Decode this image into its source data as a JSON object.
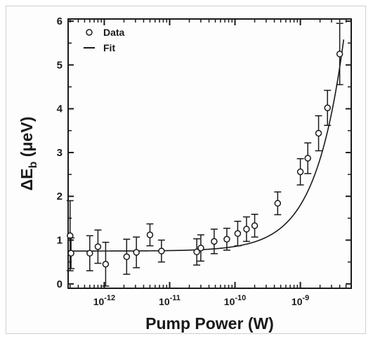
{
  "chart_data": {
    "type": "scatter",
    "xlabel": "Pump Power (W)",
    "ylabel_symbol": "ΔE",
    "ylabel_subscript": "b",
    "ylabel_unit": "(μeV)",
    "x_scale": "log",
    "xlim": [
      2.8e-13,
      6e-09
    ],
    "ylim": [
      -0.1,
      6.05
    ],
    "x_ticks": [
      {
        "value": 1e-12,
        "base": "10",
        "exp": "-12"
      },
      {
        "value": 1e-11,
        "base": "10",
        "exp": "-11"
      },
      {
        "value": 1e-10,
        "base": "10",
        "exp": "-10"
      },
      {
        "value": 1e-09,
        "base": "10",
        "exp": "-9"
      }
    ],
    "y_ticks": [
      "0",
      "1",
      "2",
      "3",
      "4",
      "5",
      "6"
    ],
    "grid": false,
    "legend": {
      "position": "top-left",
      "entries": [
        "Data",
        "Fit"
      ]
    },
    "series": [
      {
        "name": "Data",
        "marker": "open-circle",
        "x": [
          3e-13,
          3.1e-13,
          6e-13,
          8e-13,
          1.05e-12,
          2.2e-12,
          3.1e-12,
          5e-12,
          7.5e-12,
          2.6e-11,
          3e-11,
          4.8e-11,
          7.5e-11,
          1.1e-10,
          1.5e-10,
          2e-10,
          4.5e-10,
          1e-09,
          1.3e-09,
          1.9e-09,
          2.6e-09,
          4e-09
        ],
        "y": [
          1.1,
          0.7,
          0.7,
          0.85,
          0.45,
          0.62,
          0.72,
          1.12,
          0.75,
          0.73,
          0.82,
          0.97,
          1.02,
          1.15,
          1.25,
          1.33,
          1.84,
          2.56,
          2.87,
          3.44,
          4.02,
          5.25
        ],
        "err": [
          0.8,
          0.35,
          0.4,
          0.38,
          0.5,
          0.4,
          0.35,
          0.25,
          0.25,
          0.3,
          0.3,
          0.28,
          0.25,
          0.28,
          0.28,
          0.26,
          0.26,
          0.3,
          0.35,
          0.4,
          0.4,
          0.7
        ]
      },
      {
        "name": "Fit",
        "line": "solid",
        "model": "y = 0.75 + 1.05e9 * x",
        "x_range": [
          2.8e-13,
          4.6e-09
        ]
      }
    ]
  }
}
